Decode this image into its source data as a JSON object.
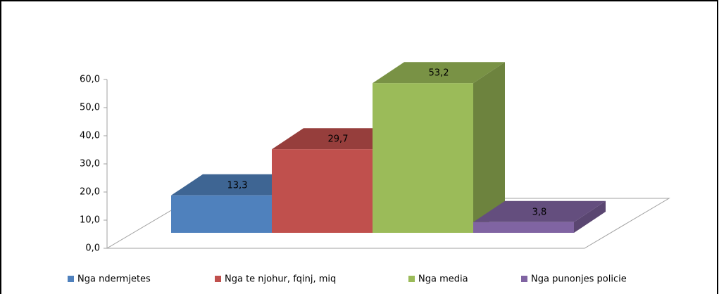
{
  "chart_data": {
    "type": "bar3d",
    "series": [
      {
        "name": "Nga ndermjetes",
        "color": "#4f81bd",
        "values": [
          13.3
        ],
        "value_labels": [
          "13,3"
        ]
      },
      {
        "name": "Nga te njohur, fqinj, miq",
        "color": "#c0504d",
        "values": [
          29.7
        ],
        "value_labels": [
          "29,7"
        ]
      },
      {
        "name": "Nga media",
        "color": "#9bbb59",
        "values": [
          53.2
        ],
        "value_labels": [
          "53,2"
        ]
      },
      {
        "name": "Nga punonjes policie",
        "color": "#8064a2",
        "values": [
          3.8
        ],
        "value_labels": [
          "3,8"
        ]
      }
    ],
    "ylim": [
      0,
      60
    ],
    "yticks": [
      {
        "value": 0,
        "label": "0,0"
      },
      {
        "value": 10,
        "label": "10,0"
      },
      {
        "value": 20,
        "label": "20,0"
      },
      {
        "value": 30,
        "label": "30,0"
      },
      {
        "value": 40,
        "label": "40,0"
      },
      {
        "value": 50,
        "label": "50,0"
      },
      {
        "value": 60,
        "label": "60,0"
      }
    ],
    "legend": "bottom"
  }
}
